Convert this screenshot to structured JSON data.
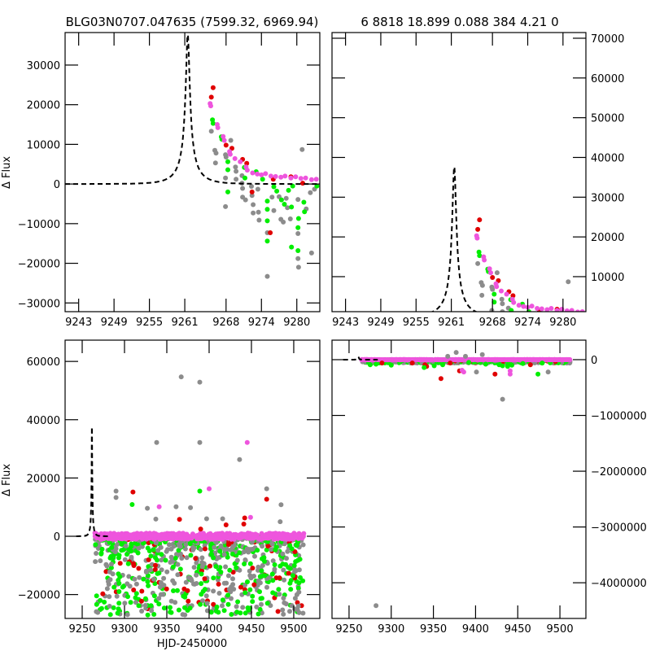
{
  "figure": {
    "title_left": "BLG03N0707.047635 (7599.32, 6969.94)",
    "title_right": "6 8818 18.899 0.088 384  4.21     0",
    "ylabel": "Δ Flux",
    "xlabel": "HJD-2450000"
  },
  "colors": {
    "model": "#000000",
    "series_gray": "#8c8c8c",
    "series_green": "#00ee00",
    "series_red": "#e00000",
    "series_magenta": "#ee55dd"
  },
  "chart_data": [
    {
      "id": "top-left",
      "type": "scatter",
      "title": "BLG03N0707.047635 (7599.32, 6969.94)",
      "xlabel": "",
      "ylabel": "Δ Flux",
      "xlim": [
        9240.7,
        9283.9
      ],
      "ylim": [
        -32200,
        38200
      ],
      "xticks": [
        9243,
        9249,
        9255,
        9261,
        9268,
        9274,
        9280
      ],
      "yticks": [
        -30000,
        -20000,
        -10000,
        0,
        10000,
        20000,
        30000
      ],
      "ytick_side": "left",
      "model": {
        "t0": 9261.5,
        "tE": 3.6,
        "peak": 38000,
        "base": 0,
        "style": "dashed"
      },
      "series": [
        {
          "name": "red",
          "color": "#e00000",
          "points": [
            [
              9265.8,
              24300
            ],
            [
              9265.5,
              21900
            ],
            [
              9268,
              9800
            ],
            [
              9269,
              9000
            ],
            [
              9270.8,
              6200
            ],
            [
              9271.5,
              5200
            ],
            [
              9272.4,
              -2000
            ],
            [
              9275.5,
              -12300
            ],
            [
              9276,
              1200
            ],
            [
              9279,
              1800
            ],
            [
              9281,
              200
            ]
          ]
        },
        {
          "name": "magenta",
          "color": "#ee55dd",
          "points": [
            [
              9265.3,
              20300
            ],
            [
              9265.4,
              19700
            ],
            [
              9266.5,
              15000
            ],
            [
              9266.6,
              14200
            ],
            [
              9267.5,
              12000
            ],
            [
              9267.7,
              11000
            ],
            [
              9268.6,
              8200
            ],
            [
              9268.7,
              7500
            ],
            [
              9269.5,
              6400
            ],
            [
              9270.4,
              5600
            ],
            [
              9271.4,
              4300
            ],
            [
              9271.6,
              3500
            ],
            [
              9272.5,
              2800
            ],
            [
              9273.3,
              2500
            ],
            [
              9274,
              2300
            ],
            [
              9274.7,
              2600
            ],
            [
              9275.6,
              2000
            ],
            [
              9276.4,
              1900
            ],
            [
              9277.3,
              1700
            ],
            [
              9278,
              2000
            ],
            [
              9279,
              1500
            ],
            [
              9279.8,
              1800
            ],
            [
              9280.7,
              1400
            ],
            [
              9281.5,
              1500
            ],
            [
              9282.5,
              1100
            ],
            [
              9283.3,
              1200
            ]
          ]
        },
        {
          "name": "green",
          "color": "#00ee00",
          "points": [
            [
              9265.7,
              16200
            ],
            [
              9265.8,
              15300
            ],
            [
              9267.2,
              11900
            ],
            [
              9267.3,
              11300
            ],
            [
              9268.3,
              5600
            ],
            [
              9268.3,
              3600
            ],
            [
              9268.3,
              -2000
            ],
            [
              9271.1,
              4200
            ],
            [
              9271.2,
              1500
            ],
            [
              9273.1,
              3100
            ],
            [
              9274.2,
              1200
            ],
            [
              9275,
              -4300
            ],
            [
              9275,
              -6400
            ],
            [
              9275,
              -9300
            ],
            [
              9275,
              -14400
            ],
            [
              9276.1,
              -700
            ],
            [
              9276.6,
              -1800
            ],
            [
              9277.4,
              -4000
            ],
            [
              9277.9,
              -5100
            ],
            [
              9278.6,
              -1600
            ],
            [
              9279.1,
              -5800
            ],
            [
              9279.1,
              -15900
            ],
            [
              9279.3,
              -500
            ],
            [
              9280.2,
              -11000
            ],
            [
              9280.2,
              -16800
            ],
            [
              9280.3,
              -8700
            ],
            [
              9281.2,
              -4600
            ],
            [
              9281.3,
              -7000
            ],
            [
              9283.4,
              -500
            ]
          ]
        },
        {
          "name": "gray",
          "color": "#8c8c8c",
          "points": [
            [
              9265.5,
              13300
            ],
            [
              9266.1,
              8500
            ],
            [
              9266.3,
              7800
            ],
            [
              9266.2,
              5300
            ],
            [
              9267.9,
              7400
            ],
            [
              9268,
              6800
            ],
            [
              9267.9,
              1500
            ],
            [
              9267.9,
              -5700
            ],
            [
              9268.8,
              11000
            ],
            [
              9269.6,
              4300
            ],
            [
              9269.7,
              3200
            ],
            [
              9269.7,
              1200
            ],
            [
              9270.7,
              2100
            ],
            [
              9270.7,
              200
            ],
            [
              9270.8,
              -1100
            ],
            [
              9270.8,
              -3300
            ],
            [
              9271.3,
              -4000
            ],
            [
              9272.3,
              -600
            ],
            [
              9272.4,
              -2900
            ],
            [
              9272.6,
              -5200
            ],
            [
              9272.6,
              -7300
            ],
            [
              9273.4,
              -1300
            ],
            [
              9273.5,
              -7100
            ],
            [
              9273.6,
              -9100
            ],
            [
              9275,
              -12300
            ],
            [
              9275,
              -23300
            ],
            [
              9275.8,
              -3300
            ],
            [
              9276.1,
              -6700
            ],
            [
              9277,
              -3200
            ],
            [
              9277.3,
              -8900
            ],
            [
              9277.7,
              -9600
            ],
            [
              9278.2,
              -3600
            ],
            [
              9278.4,
              -6000
            ],
            [
              9278.9,
              -8800
            ],
            [
              9280.2,
              -3900
            ],
            [
              9280.2,
              -12500
            ],
            [
              9280.2,
              -18800
            ],
            [
              9280.3,
              -21000
            ],
            [
              9280.9,
              8700
            ],
            [
              9281.6,
              -6300
            ],
            [
              9282.3,
              -2200
            ],
            [
              9282.5,
              -17400
            ],
            [
              9283,
              -1300
            ]
          ]
        }
      ]
    },
    {
      "id": "top-right",
      "type": "scatter",
      "title": "6 8818 18.899 0.088 384  4.21     0",
      "xlim": [
        9240.7,
        9283.9
      ],
      "ylim": [
        1190,
        71430
      ],
      "xticks": [
        9243,
        9249,
        9255,
        9261,
        9268,
        9274,
        9280
      ],
      "yticks": [
        10000,
        20000,
        30000,
        40000,
        50000,
        60000,
        70000
      ],
      "ytick_side": "right",
      "model": {
        "t0": 9261.5,
        "tE": 3.6,
        "peak": 38000,
        "base": 0,
        "style": "dashed"
      },
      "series_ref": "top-left"
    },
    {
      "id": "bottom-left",
      "type": "scatter",
      "xlabel": "HJD-2450000",
      "ylabel": "Δ Flux",
      "xlim": [
        9229.8,
        9530.8
      ],
      "ylim": [
        -28200,
        67300
      ],
      "xticks": [
        9250,
        9300,
        9350,
        9400,
        9450,
        9500
      ],
      "yticks": [
        -20000,
        0,
        20000,
        40000,
        60000
      ],
      "ytick_side": "left",
      "model": {
        "t0": 9261.5,
        "tE": 3.6,
        "peak": 38000,
        "base": 0,
        "style": "dashed",
        "xrange": [
          9243,
          9284
        ]
      },
      "outliers": [
        {
          "color": "#8c8c8c",
          "points": [
            [
              9367,
              54700
            ],
            [
              9389,
              52900
            ],
            [
              9338,
              32200
            ],
            [
              9389,
              32200
            ],
            [
              9436,
              26300
            ],
            [
              9290,
              15500
            ],
            [
              9290,
              13300
            ],
            [
              9468,
              16300
            ],
            [
              9485,
              10800
            ],
            [
              9361,
              10100
            ],
            [
              9327,
              9600
            ],
            [
              9378,
              9800
            ],
            [
              9416,
              6000
            ],
            [
              9397,
              6000
            ],
            [
              9337,
              5900
            ],
            [
              9484,
              5000
            ]
          ]
        },
        {
          "color": "#ee55dd",
          "points": [
            [
              9445,
              32200
            ],
            [
              9400,
              16300
            ],
            [
              9341,
              10100
            ],
            [
              9449,
              6500
            ]
          ]
        },
        {
          "color": "#e00000",
          "points": [
            [
              9310,
              15200
            ],
            [
              9468,
              12700
            ],
            [
              9365,
              5800
            ],
            [
              9442,
              6300
            ],
            [
              9441,
              4200
            ],
            [
              9420,
              3900
            ],
            [
              9390,
              2500
            ]
          ]
        },
        {
          "color": "#00ee00",
          "points": [
            [
              9389,
              15500
            ],
            [
              9309,
              10900
            ]
          ]
        }
      ],
      "bulk": {
        "band_center": 0,
        "down_extent": -27000,
        "x_range": [
          9265,
          9512
        ]
      }
    },
    {
      "id": "bottom-right",
      "type": "scatter",
      "xlim": [
        9229.8,
        9530.8
      ],
      "ylim": [
        -4640000,
        350000
      ],
      "xticks": [
        9250,
        9300,
        9350,
        9400,
        9450,
        9500
      ],
      "yticks": [
        -4000000,
        -3000000,
        -2000000,
        -1000000,
        0
      ],
      "ytick_side": "right",
      "model": {
        "t0": 9261.5,
        "tE": 3.6,
        "peak": 38000,
        "base": 0,
        "style": "dashed",
        "xrange": [
          9243,
          9284
        ]
      },
      "outliers": [
        {
          "color": "#8c8c8c",
          "points": [
            [
              9282,
              -4410000
            ],
            [
              9432,
              -710000
            ],
            [
              9401,
              -220000
            ],
            [
              9486,
              -220000
            ],
            [
              9377,
              130000
            ],
            [
              9408,
              90000
            ],
            [
              9388,
              60000
            ],
            [
              9367,
              60000
            ]
          ]
        },
        {
          "color": "#e00000",
          "points": [
            [
              9359,
              -340000
            ],
            [
              9423,
              -260000
            ],
            [
              9381,
              -200000
            ],
            [
              9342,
              -120000
            ],
            [
              9340,
              -90000
            ],
            [
              9289,
              -60000
            ],
            [
              9465,
              -90000
            ],
            [
              9325,
              -60000
            ],
            [
              9370,
              -60000
            ]
          ]
        },
        {
          "color": "#00ee00",
          "points": [
            [
              9339,
              -140000
            ],
            [
              9474,
              -260000
            ],
            [
              9300,
              -100000
            ],
            [
              9275,
              -90000
            ],
            [
              9282,
              -80000
            ],
            [
              9351,
              -110000
            ],
            [
              9361,
              -90000
            ],
            [
              9412,
              -80000
            ],
            [
              9432,
              -110000
            ],
            [
              9438,
              -120000
            ],
            [
              9443,
              -100000
            ],
            [
              9456,
              -70000
            ],
            [
              9479,
              -60000
            ],
            [
              9392,
              -50000
            ],
            [
              9428,
              -90000
            ]
          ]
        },
        {
          "color": "#ee55dd",
          "points": [
            [
              9384,
              -190000
            ],
            [
              9386,
              -220000
            ],
            [
              9441,
              -200000
            ],
            [
              9441,
              -260000
            ]
          ]
        }
      ],
      "bulk": {
        "band_center": 0,
        "down_extent": -60000,
        "x_range": [
          9265,
          9512
        ]
      }
    }
  ]
}
